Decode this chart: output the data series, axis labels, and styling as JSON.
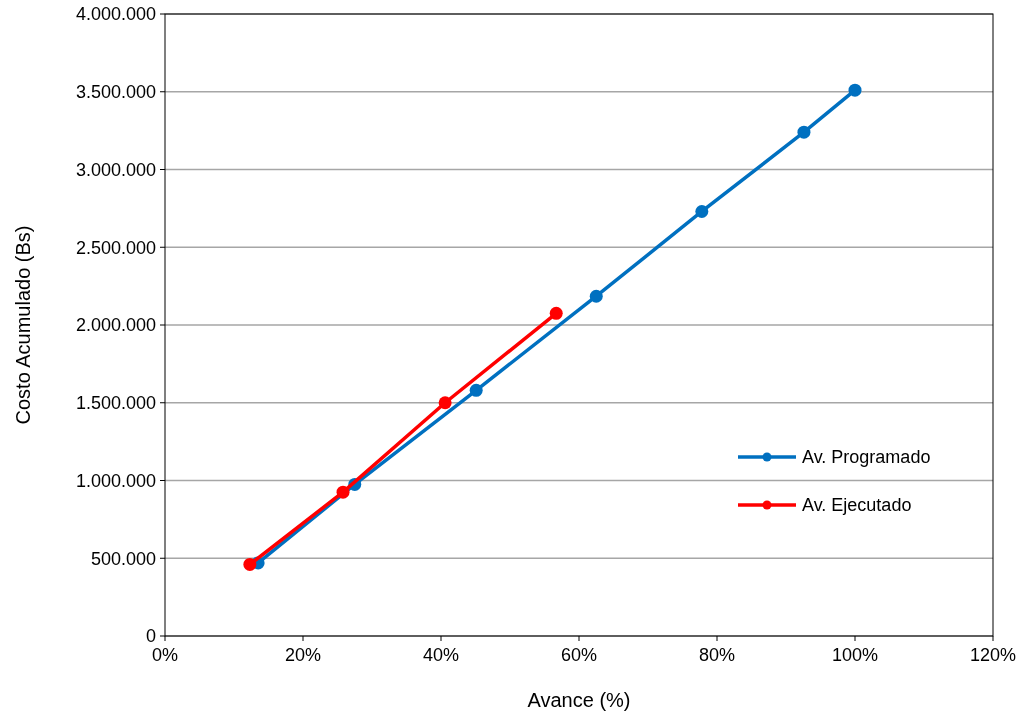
{
  "chart_data": {
    "type": "line",
    "xlabel": "Avance (%)",
    "ylabel": "Costo Acumulado (Bs)",
    "xlim": [
      0,
      120
    ],
    "xticks": [
      {
        "value": 0,
        "label": "0%"
      },
      {
        "value": 20,
        "label": "20%"
      },
      {
        "value": 40,
        "label": "40%"
      },
      {
        "value": 60,
        "label": "60%"
      },
      {
        "value": 80,
        "label": "80%"
      },
      {
        "value": 100,
        "label": "100%"
      },
      {
        "value": 120,
        "label": "120%"
      }
    ],
    "ylim": [
      0,
      4000000
    ],
    "yticks": [
      {
        "value": 0,
        "label": "0"
      },
      {
        "value": 500000,
        "label": "500.000"
      },
      {
        "value": 1000000,
        "label": "1.000.000"
      },
      {
        "value": 1500000,
        "label": "1.500.000"
      },
      {
        "value": 2000000,
        "label": "2.000.000"
      },
      {
        "value": 2500000,
        "label": "2.500.000"
      },
      {
        "value": 3000000,
        "label": "3.000.000"
      },
      {
        "value": 3500000,
        "label": "3.500.000"
      },
      {
        "value": 4000000,
        "label": "4.000.000"
      }
    ],
    "grid": "y",
    "legend": "right",
    "marker": "circle",
    "line_style": "solid",
    "series": [
      {
        "name": "Av. Programado",
        "color": "#0070c0",
        "x": [
          13.5,
          27.5,
          45.1,
          62.5,
          77.8,
          92.6,
          100
        ],
        "values": [
          470000,
          975000,
          1580000,
          2185000,
          2730000,
          3240000,
          3510000
        ]
      },
      {
        "name": "Av. Ejecutado",
        "color": "#ff0000",
        "x": [
          12.3,
          25.8,
          40.6,
          56.7
        ],
        "values": [
          460000,
          925000,
          1500000,
          2075000
        ]
      }
    ]
  }
}
